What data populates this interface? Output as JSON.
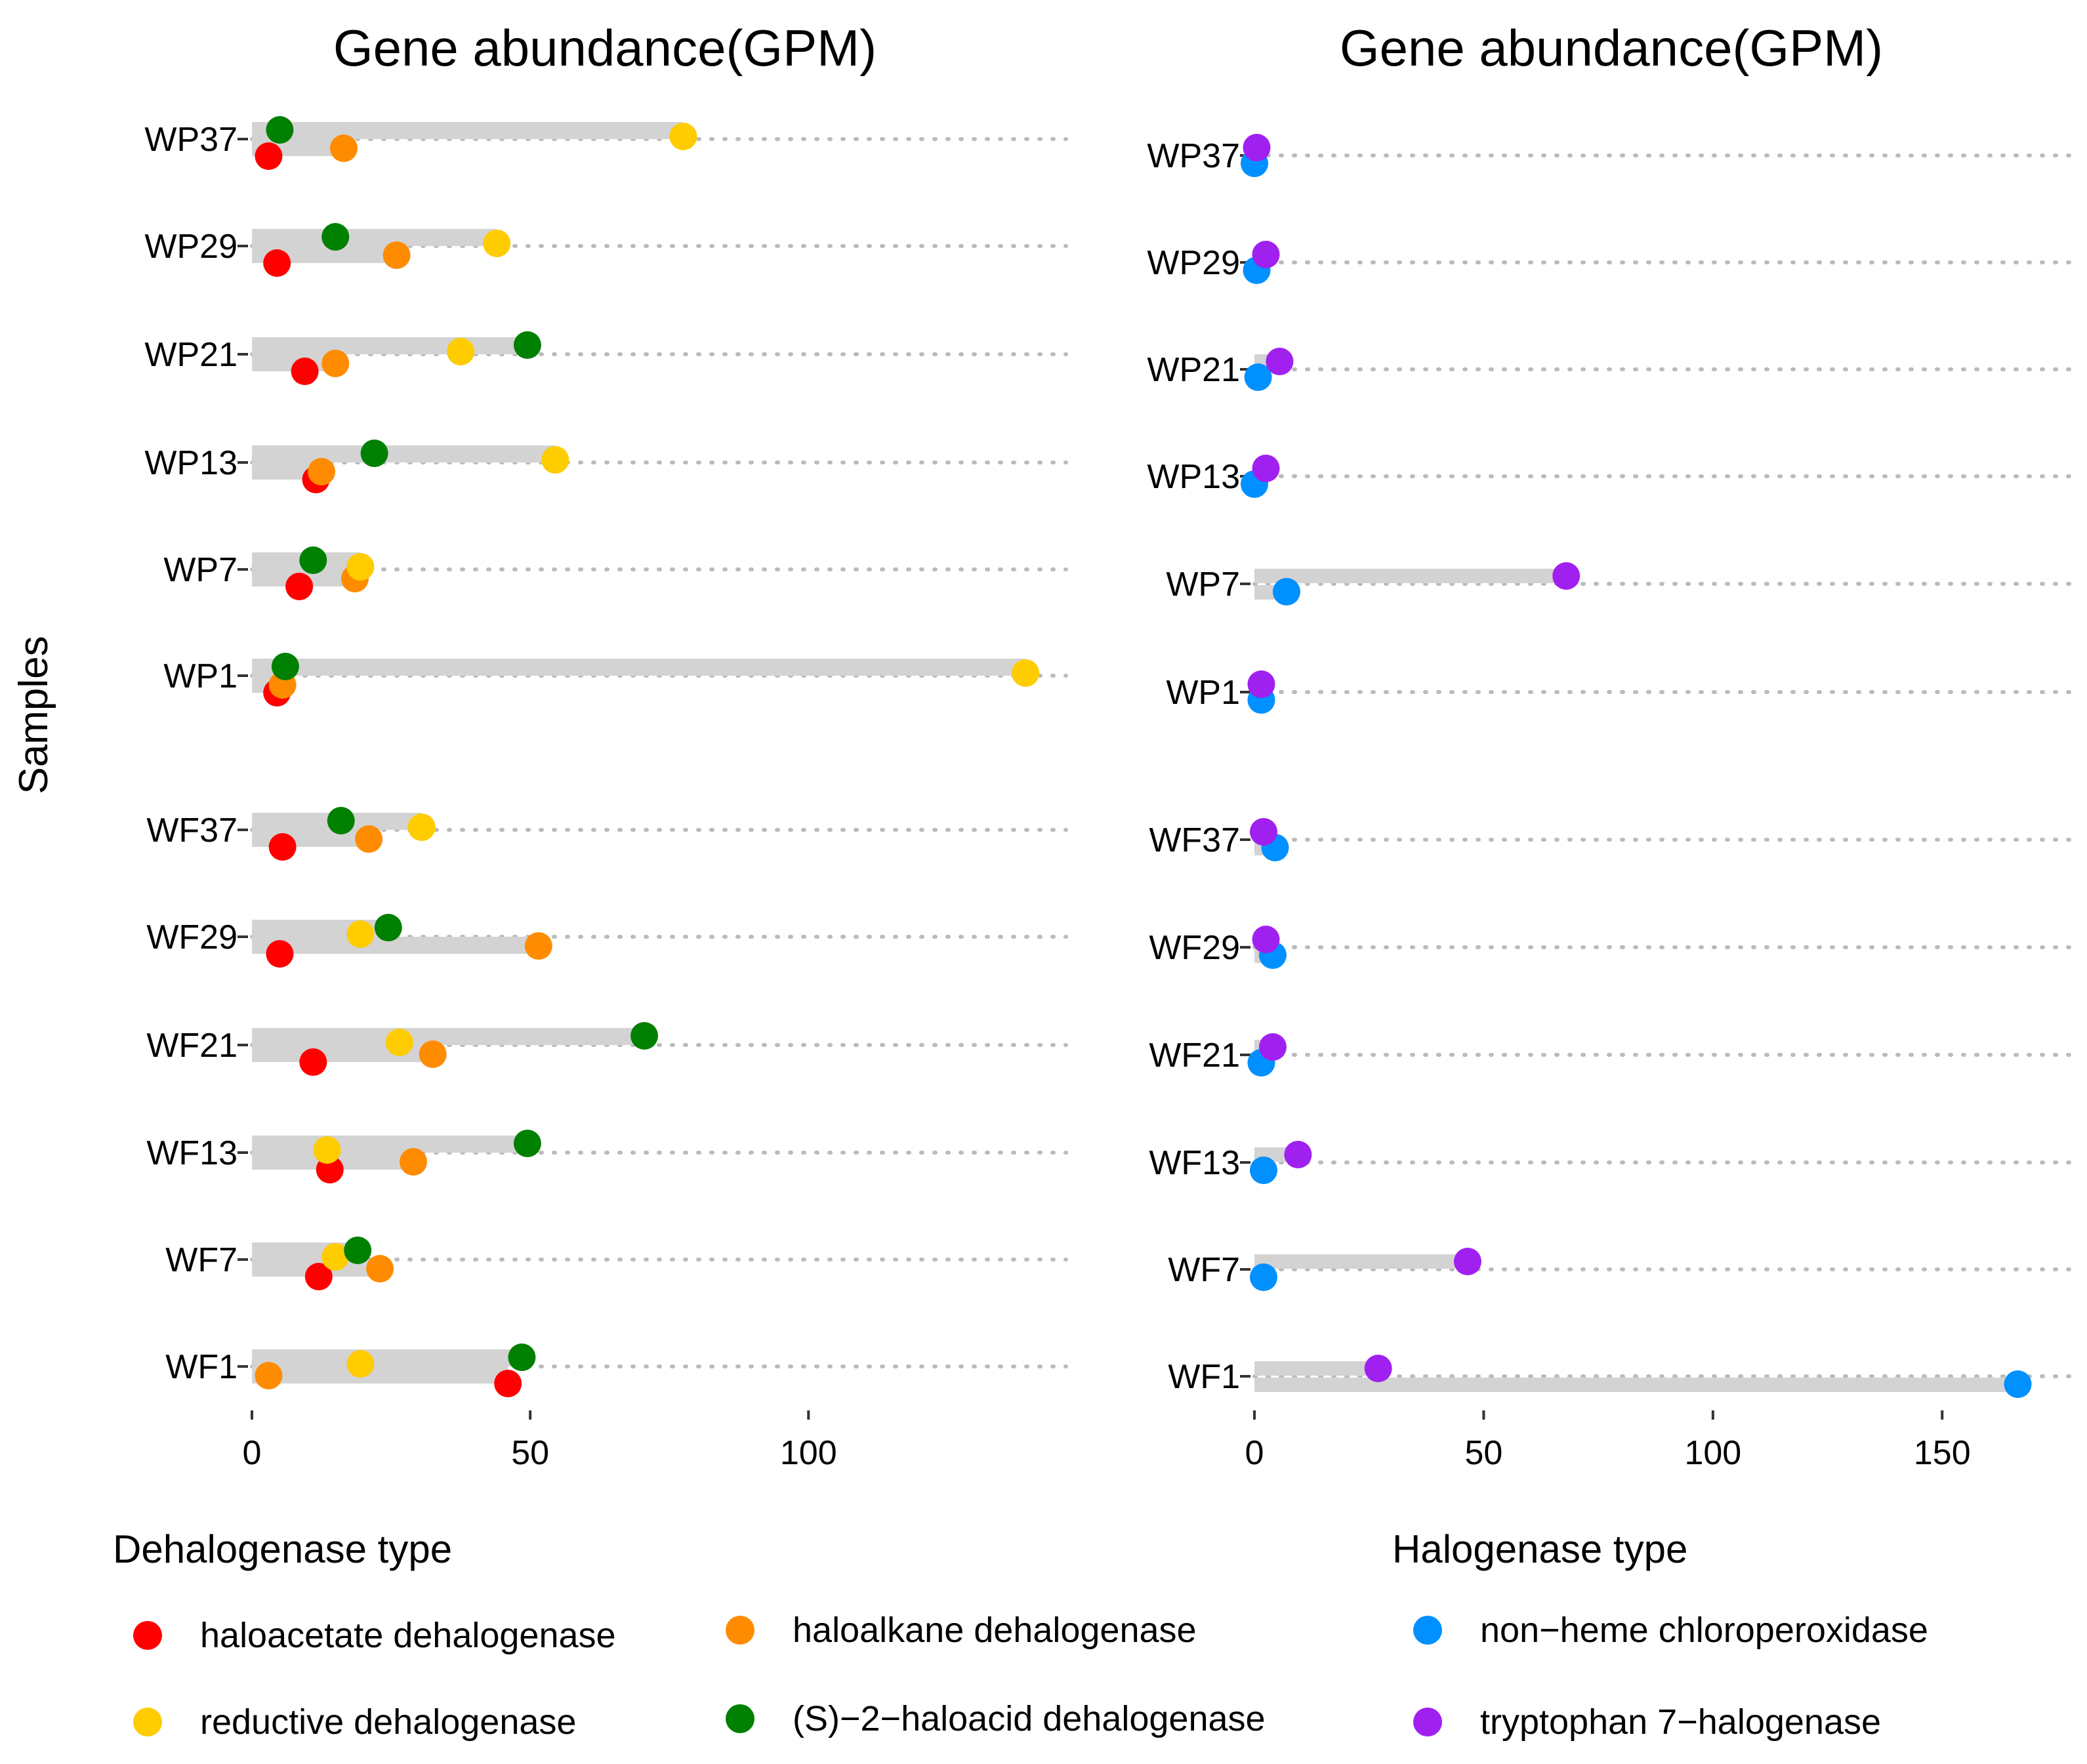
{
  "y_axis_label": "Samples",
  "colors": {
    "haloacetate dehalogenase": "#ff0000",
    "haloalkane dehalogenase": "#ff8c00",
    "reductive dehalogenase": "#ffcc00",
    "(S)-2-haloacid dehalogenase": "#008000",
    "non-heme chloroperoxidase": "#0090ff",
    "tryptophan 7-halogenase": "#a020f0",
    "segment": "#d3d3d3",
    "dotted_line": "#bbbbbb"
  },
  "legends": [
    {
      "title": "Dehalogenase type",
      "items": [
        "haloacetate dehalogenase",
        "haloalkane dehalogenase",
        "reductive dehalogenase",
        "(S)−2−haloacid dehalogenase"
      ]
    },
    {
      "title": "Halogenase type",
      "items": [
        "non−heme chloroperoxidase",
        "tryptophan 7−halogenase"
      ]
    }
  ],
  "chart_data": [
    {
      "type": "dot",
      "title": "Gene abundance(GPM)",
      "ylabel": "Samples",
      "xlim": [
        0,
        145
      ],
      "xticks": [
        0,
        50,
        100
      ],
      "categories": [
        "WP37",
        "WP29",
        "WP21",
        "WP13",
        "WP7",
        "WP1",
        "WF37",
        "WF29",
        "WF21",
        "WF13",
        "WF7",
        "WF1"
      ],
      "series": [
        {
          "name": "haloacetate dehalogenase",
          "values": [
            3,
            4.5,
            9.5,
            11.5,
            8.5,
            4.5,
            5.5,
            5,
            11,
            14,
            12,
            46
          ]
        },
        {
          "name": "haloalkane dehalogenase",
          "values": [
            16.5,
            26,
            15,
            12.5,
            18.5,
            5.5,
            21,
            51.5,
            32.5,
            29,
            23,
            3
          ]
        },
        {
          "name": "reductive dehalogenase",
          "values": [
            77.5,
            44,
            37.5,
            54.5,
            19.5,
            139,
            30.5,
            19.5,
            26.5,
            13.5,
            15,
            19.5
          ]
        },
        {
          "name": "(S)-2-haloacid dehalogenase",
          "values": [
            5,
            15,
            49.5,
            22,
            11,
            6,
            16,
            24.5,
            70.5,
            49.5,
            19,
            48.5
          ]
        }
      ]
    },
    {
      "type": "dot",
      "title": "Gene abundance(GPM)",
      "xlim": [
        0,
        172
      ],
      "xticks": [
        0,
        50,
        100,
        150
      ],
      "categories": [
        "WP37",
        "WP29",
        "WP21",
        "WP13",
        "WP7",
        "WP1",
        "WF37",
        "WF29",
        "WF21",
        "WF13",
        "WF7",
        "WF1"
      ],
      "series": [
        {
          "name": "non-heme chloroperoxidase",
          "values": [
            0,
            0.5,
            0.8,
            0,
            7,
            1.5,
            4.5,
            4,
            1.5,
            2,
            2,
            166.5
          ]
        },
        {
          "name": "tryptophan 7-halogenase",
          "values": [
            0.5,
            2.5,
            5.5,
            2.5,
            68,
            1.5,
            2,
            2.5,
            4,
            9.5,
            46.5,
            27
          ]
        }
      ]
    }
  ]
}
